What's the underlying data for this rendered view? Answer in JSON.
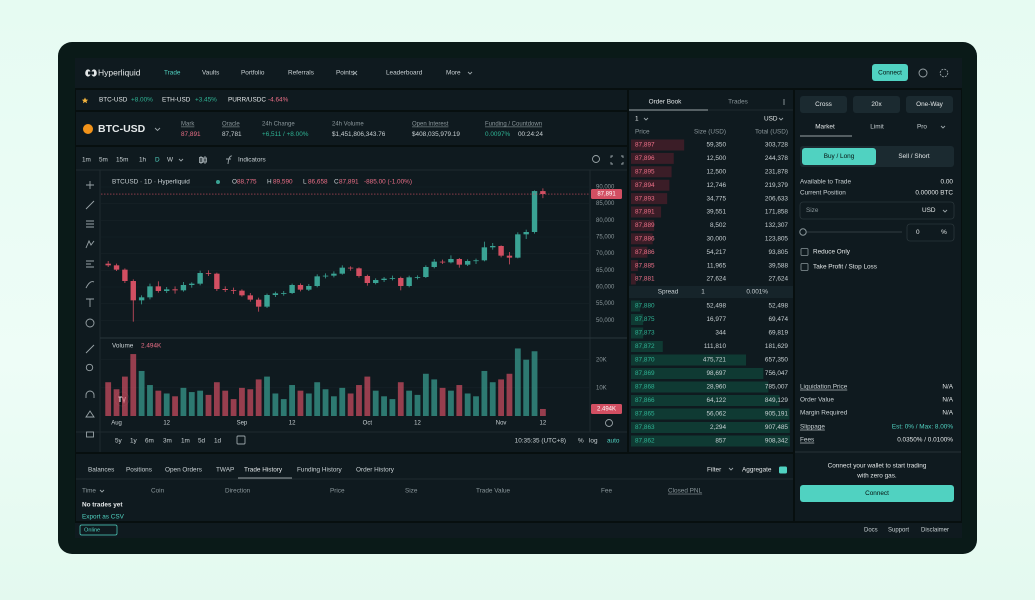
{
  "nav": {
    "logo": "Hyperliquid",
    "items": [
      "Trade",
      "Vaults",
      "Portfolio",
      "Referrals",
      "Points",
      "Leaderboard",
      "More"
    ],
    "connect": "Connect"
  },
  "tickers": [
    {
      "symbol": "BTC-USD",
      "change": "+8.00%"
    },
    {
      "symbol": "ETH-USD",
      "change": "+3.45%"
    },
    {
      "symbol": "PURR/USDC",
      "change": "-4.64%"
    }
  ],
  "market": {
    "symbol": "BTC-USD",
    "stats": [
      {
        "label": "Mark",
        "value": "87,891"
      },
      {
        "label": "Oracle",
        "value": "87,781"
      },
      {
        "label": "24h Change",
        "value": "+6,511 / +8.00%"
      },
      {
        "label": "24h Volume",
        "value": "$1,451,806,343.76"
      },
      {
        "label": "Open Interest",
        "value": "$408,035,979.19"
      },
      {
        "label": "Funding / Countdown",
        "value": "0.0097%",
        "extra": "00:24:24"
      }
    ]
  },
  "chart_toolbar": {
    "intervals": [
      "1m",
      "5m",
      "15m",
      "1h",
      "D",
      "W"
    ],
    "indicators": "Indicators",
    "ranges": [
      "5y",
      "1y",
      "6m",
      "3m",
      "1m",
      "5d",
      "1d"
    ],
    "time": "10:35:35 (UTC+8)",
    "scale_options": [
      "%",
      "log",
      "auto"
    ]
  },
  "chart_data": {
    "type": "candlestick",
    "title": "BTCUSD · 1D · Hyperliquid",
    "legend": {
      "ohlc": [
        {
          "key": "O",
          "value": "88,775"
        },
        {
          "key": "H",
          "value": "89,590"
        },
        {
          "key": "L",
          "value": "86,658"
        },
        {
          "key": "C",
          "value": "87,891"
        }
      ],
      "change": "-885.00 (-1.00%)"
    },
    "categories": [
      null,
      "Aug",
      null,
      null,
      null,
      null,
      null,
      "12",
      null,
      null,
      null,
      null,
      null,
      null,
      null,
      null,
      "Sep",
      null,
      null,
      null,
      null,
      null,
      "12",
      null,
      null,
      null,
      null,
      null,
      null,
      null,
      null,
      "Oct",
      null,
      null,
      null,
      null,
      null,
      "12",
      null,
      null,
      null,
      null,
      null,
      null,
      null,
      null,
      null,
      "Nov",
      null,
      null,
      null,
      null,
      "12"
    ],
    "open": [
      67000,
      66500,
      65200,
      61800,
      56000,
      56900,
      60200,
      58800,
      59300,
      59000,
      60600,
      61000,
      64200,
      64000,
      59400,
      59100,
      58900,
      57500,
      56200,
      54100,
      57600,
      58100,
      58200,
      60600,
      59200,
      60300,
      63200,
      63400,
      64000,
      65800,
      65600,
      63300,
      61200,
      62100,
      62500,
      62700,
      60300,
      62900,
      63000,
      66000,
      67600,
      67400,
      68400,
      66700,
      67800,
      68000,
      71900,
      72300,
      69400,
      68800,
      75800,
      76500,
      88775
    ],
    "high": [
      67800,
      67000,
      65600,
      62300,
      57500,
      61000,
      61700,
      60000,
      60200,
      61500,
      61400,
      64900,
      65000,
      64300,
      60200,
      59800,
      59300,
      58200,
      56800,
      58000,
      58600,
      58800,
      61000,
      61100,
      60900,
      63800,
      64100,
      64700,
      66500,
      66200,
      65900,
      63700,
      62600,
      63000,
      63400,
      63100,
      63400,
      63500,
      66500,
      68400,
      68200,
      69500,
      68700,
      68300,
      68500,
      73600,
      73200,
      72500,
      70500,
      76400,
      77200,
      89000,
      89590
    ],
    "low": [
      66000,
      64800,
      61200,
      49600,
      54800,
      56300,
      58300,
      58200,
      58000,
      58600,
      59800,
      60500,
      63300,
      58800,
      58500,
      57900,
      57100,
      55600,
      52600,
      53700,
      57000,
      57400,
      57900,
      58700,
      58800,
      59900,
      62600,
      62900,
      63700,
      64900,
      62800,
      60400,
      60800,
      61500,
      62000,
      59000,
      59900,
      62300,
      62700,
      65600,
      66900,
      67100,
      65800,
      66300,
      66900,
      67700,
      71200,
      68900,
      66800,
      68600,
      74400,
      76000,
      86658
    ],
    "close": [
      66500,
      65200,
      61800,
      56000,
      56900,
      60200,
      58800,
      59300,
      59000,
      60600,
      61000,
      64200,
      64000,
      59400,
      59100,
      58900,
      57500,
      56200,
      54100,
      57600,
      58100,
      58200,
      60600,
      59200,
      60300,
      63200,
      63400,
      64000,
      65800,
      65600,
      63300,
      61200,
      62100,
      62500,
      62700,
      60300,
      62900,
      63000,
      66000,
      67600,
      67400,
      68400,
      66700,
      67800,
      68000,
      71900,
      72300,
      69400,
      68800,
      75800,
      76500,
      88775,
      87891
    ],
    "last_label": "87,891",
    "up_color": "#3aa394",
    "down_color": "#d24f62",
    "ylim": [
      45000,
      93000
    ],
    "yticks": [
      {
        "value": 50000,
        "label": "50,000"
      },
      {
        "value": 55000,
        "label": "55,000"
      },
      {
        "value": 60000,
        "label": "60,000"
      },
      {
        "value": 65000,
        "label": "65,000"
      },
      {
        "value": 70000,
        "label": "70,000"
      },
      {
        "value": 75000,
        "label": "75,000"
      },
      {
        "value": 80000,
        "label": "80,000"
      },
      {
        "value": 85000,
        "label": "85,000"
      },
      {
        "value": 90000,
        "label": "90,000"
      }
    ],
    "grid": true,
    "volume": {
      "title": "Volume",
      "values": [
        12000,
        9500,
        14000,
        22000,
        16000,
        11000,
        9000,
        8000,
        7000,
        10000,
        8500,
        9000,
        7500,
        12000,
        9000,
        6000,
        10000,
        9500,
        13000,
        14000,
        8000,
        6000,
        11000,
        9000,
        8000,
        12000,
        9500,
        7000,
        10000,
        8000,
        11000,
        14000,
        9000,
        7000,
        6000,
        12000,
        9000,
        7500,
        15000,
        13000,
        10000,
        9000,
        11000,
        8000,
        7000,
        16000,
        12000,
        13000,
        15000,
        24000,
        20000,
        23000,
        2494
      ],
      "last_label": "2.494K",
      "ylim": [
        0,
        27000
      ],
      "yticks": [
        {
          "value": 10000,
          "label": "10K"
        },
        {
          "value": 20000,
          "label": "20K"
        }
      ]
    }
  },
  "order_book": {
    "tabs": [
      "Order Book",
      "Trades"
    ],
    "grouping": "1",
    "unit": "USD",
    "columns": [
      "Price",
      "Size (USD)",
      "Total (USD)"
    ],
    "asks": [
      [
        "87,897",
        "59,350",
        "303,728"
      ],
      [
        "87,896",
        "12,500",
        "244,378"
      ],
      [
        "87,895",
        "12,500",
        "231,878"
      ],
      [
        "87,894",
        "12,746",
        "219,379"
      ],
      [
        "87,893",
        "34,775",
        "206,633"
      ],
      [
        "87,891",
        "39,551",
        "171,858"
      ],
      [
        "87,889",
        "8,502",
        "132,307"
      ],
      [
        "87,886",
        "30,000",
        "123,805"
      ],
      [
        "87,886",
        "54,217",
        "93,805"
      ],
      [
        "87,885",
        "11,965",
        "39,588"
      ],
      [
        "87,881",
        "27,624",
        "27,624"
      ]
    ],
    "spread": {
      "label": "Spread",
      "value": "1",
      "percent": "0.001%"
    },
    "bids": [
      [
        "87,880",
        "52,498",
        "52,498"
      ],
      [
        "87,875",
        "16,977",
        "69,474"
      ],
      [
        "87,873",
        "344",
        "69,819"
      ],
      [
        "87,872",
        "111,810",
        "181,629"
      ],
      [
        "87,870",
        "475,721",
        "657,350"
      ],
      [
        "87,869",
        "98,697",
        "756,047"
      ],
      [
        "87,868",
        "28,960",
        "785,007"
      ],
      [
        "87,866",
        "64,122",
        "849,129"
      ],
      [
        "87,865",
        "56,062",
        "905,191"
      ],
      [
        "87,863",
        "2,294",
        "907,485"
      ],
      [
        "87,862",
        "857",
        "908,342"
      ]
    ]
  },
  "trade_panel": {
    "margin_mode": "Cross",
    "leverage": "20x",
    "position_mode": "One-Way",
    "order_types": [
      "Market",
      "Limit",
      "Pro"
    ],
    "sides": [
      "Buy / Long",
      "Sell / Short"
    ],
    "info": [
      {
        "label": "Available to Trade",
        "value": "0.00"
      },
      {
        "label": "Current Position",
        "value": "0.00000 BTC"
      }
    ],
    "size_label": "Size",
    "size_unit": "USD",
    "percent_value": "0",
    "percent_unit": "%",
    "options": [
      "Reduce Only",
      "Take Profit / Stop Loss"
    ],
    "summary": [
      {
        "label": "Liquidation Price",
        "value": "N/A"
      },
      {
        "label": "Order Value",
        "value": "N/A"
      },
      {
        "label": "Margin Required",
        "value": "N/A"
      },
      {
        "label": "Slippage",
        "value": "Est: 0% / Max: 8.00%"
      },
      {
        "label": "Fees",
        "value": "0.0350% / 0.0100%"
      }
    ],
    "connect_message": [
      "Connect your wallet to start trading",
      "with zero gas."
    ],
    "connect": "Connect"
  },
  "bottom_panel": {
    "tabs": [
      "Balances",
      "Positions",
      "Open Orders",
      "TWAP",
      "Trade History",
      "Funding History",
      "Order History"
    ],
    "filter": "Filter",
    "aggregate": "Aggregate",
    "columns": [
      "Time",
      "Coin",
      "Direction",
      "Price",
      "Size",
      "Trade Value",
      "Fee",
      "Closed PNL"
    ],
    "empty": "No trades yet",
    "export": "Export as CSV"
  },
  "footer": {
    "status": "Online",
    "links": [
      "Docs",
      "Support",
      "Disclaimer"
    ]
  }
}
